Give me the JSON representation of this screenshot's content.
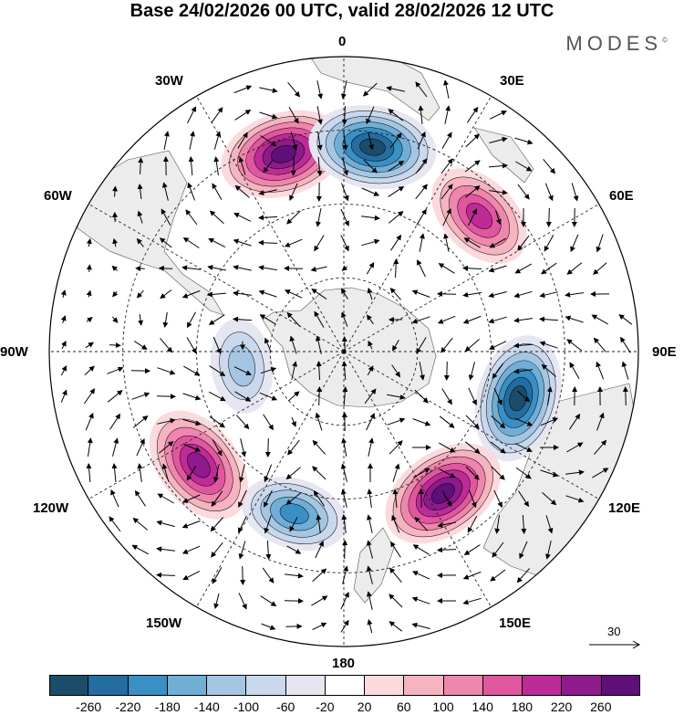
{
  "title": "Base 24/02/2026 00 UTC, valid 28/02/2026 12 UTC",
  "brand": "MODES",
  "brand_mark": "©",
  "longitude_labels": {
    "lon0": "0",
    "lon30e": "30E",
    "lon60e": "60E",
    "lon90e": "90E",
    "lon120e": "120E",
    "lon150e": "150E",
    "lon180": "180",
    "lon150w": "150W",
    "lon120w": "120W",
    "lon90w": "90W",
    "lon60w": "60W",
    "lon30w": "30W"
  },
  "reference_vector": {
    "label": "30"
  },
  "colors": {
    "land": "#ececec",
    "scale": [
      "#1b4d6b",
      "#246da0",
      "#3a8fc4",
      "#70aed6",
      "#a4c6e3",
      "#c9d8ec",
      "#e6e6f3",
      "#ffffff",
      "#fbd9dc",
      "#f6b3c0",
      "#ef86ad",
      "#e0569f",
      "#bd2b96",
      "#8f1a8c",
      "#5e0f78"
    ]
  },
  "colorbar": {
    "labels": [
      "-260",
      "-220",
      "-180",
      "-140",
      "-100",
      "-60",
      "-20",
      "20",
      "60",
      "100",
      "140",
      "180",
      "220",
      "260"
    ]
  },
  "anomaly_centers": [
    {
      "name": "anomaly-positive-south-atlantic",
      "lon": -17,
      "colat": 56,
      "value": 260
    },
    {
      "name": "anomaly-negative-greenwich",
      "lon": 8,
      "colat": 56,
      "value": -260
    },
    {
      "name": "anomaly-positive-indian-ocean",
      "lon": 45,
      "colat": 52,
      "value": 200
    },
    {
      "name": "anomaly-negative-south-indian",
      "lon": 105,
      "colat": 49,
      "value": -260
    },
    {
      "name": "anomaly-positive-south-australia",
      "lon": 145,
      "colat": 47,
      "value": 260
    },
    {
      "name": "anomaly-negative-south-pacific",
      "lon": -163,
      "colat": 46,
      "value": -180
    },
    {
      "name": "anomaly-positive-southeast-pacific",
      "lon": -128,
      "colat": 50,
      "value": 240
    },
    {
      "name": "anomaly-negative-amundsen-sea",
      "lon": -98,
      "colat": 28,
      "value": -130
    }
  ]
}
